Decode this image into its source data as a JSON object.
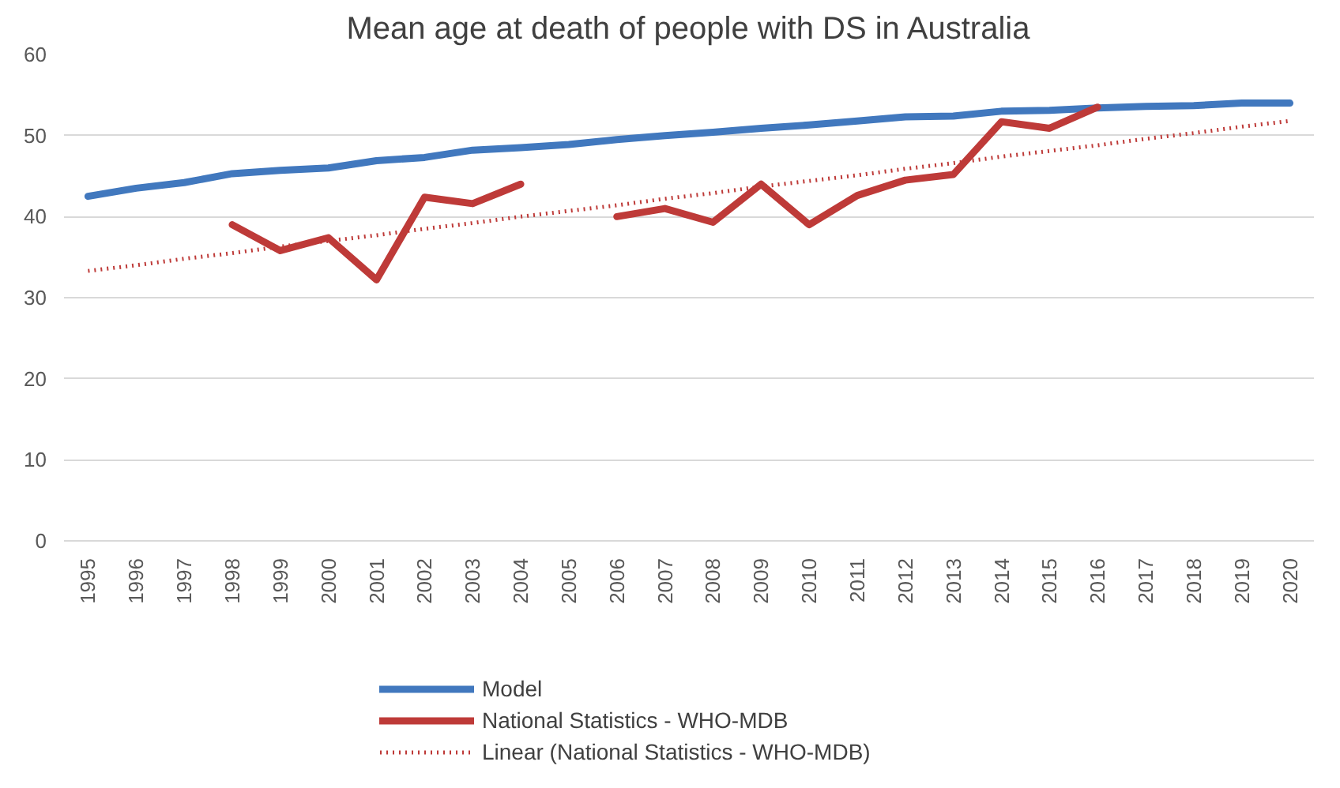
{
  "chart_data": {
    "type": "line",
    "title": "Mean age at death of people with DS in Australia",
    "categories": [
      "1995",
      "1996",
      "1997",
      "1998",
      "1999",
      "2000",
      "2001",
      "2002",
      "2003",
      "2004",
      "2005",
      "2006",
      "2007",
      "2008",
      "2009",
      "2010",
      "2011",
      "2012",
      "2013",
      "2014",
      "2015",
      "2016",
      "2017",
      "2018",
      "2019",
      "2020"
    ],
    "series": [
      {
        "name": "Model",
        "color": "#4178be",
        "line_style": "solid",
        "values": [
          42.5,
          43.5,
          44.2,
          45.3,
          45.7,
          46.0,
          46.9,
          47.3,
          48.2,
          48.5,
          48.9,
          49.5,
          50.0,
          50.4,
          50.9,
          51.3,
          51.8,
          52.3,
          52.4,
          53.0,
          53.1,
          53.4,
          53.6,
          53.7,
          54.0,
          54.0
        ]
      },
      {
        "name": "National Statistics - WHO-MDB",
        "color": "#be3a38",
        "line_style": "solid",
        "values": [
          null,
          null,
          null,
          39.0,
          35.8,
          37.4,
          32.2,
          42.4,
          41.6,
          44.0,
          null,
          40.0,
          41.0,
          39.3,
          44.0,
          39.0,
          42.6,
          44.5,
          45.2,
          51.7,
          50.9,
          53.5,
          null,
          null,
          null,
          null
        ]
      },
      {
        "name": "Linear (National Statistics - WHO-MDB)",
        "color": "#be3a38",
        "line_style": "dotted",
        "values": [
          33.3,
          34.0,
          34.8,
          35.5,
          36.3,
          37.0,
          37.7,
          38.5,
          39.2,
          40.0,
          40.7,
          41.4,
          42.2,
          42.9,
          43.7,
          44.4,
          45.1,
          45.9,
          46.6,
          47.4,
          48.1,
          48.8,
          49.6,
          50.3,
          51.1,
          51.8
        ]
      }
    ],
    "ylim": [
      0,
      60
    ],
    "yticks": [
      0,
      10,
      20,
      30,
      40,
      50,
      60
    ],
    "grid": "y",
    "legend": "bottom",
    "marker": "none"
  }
}
